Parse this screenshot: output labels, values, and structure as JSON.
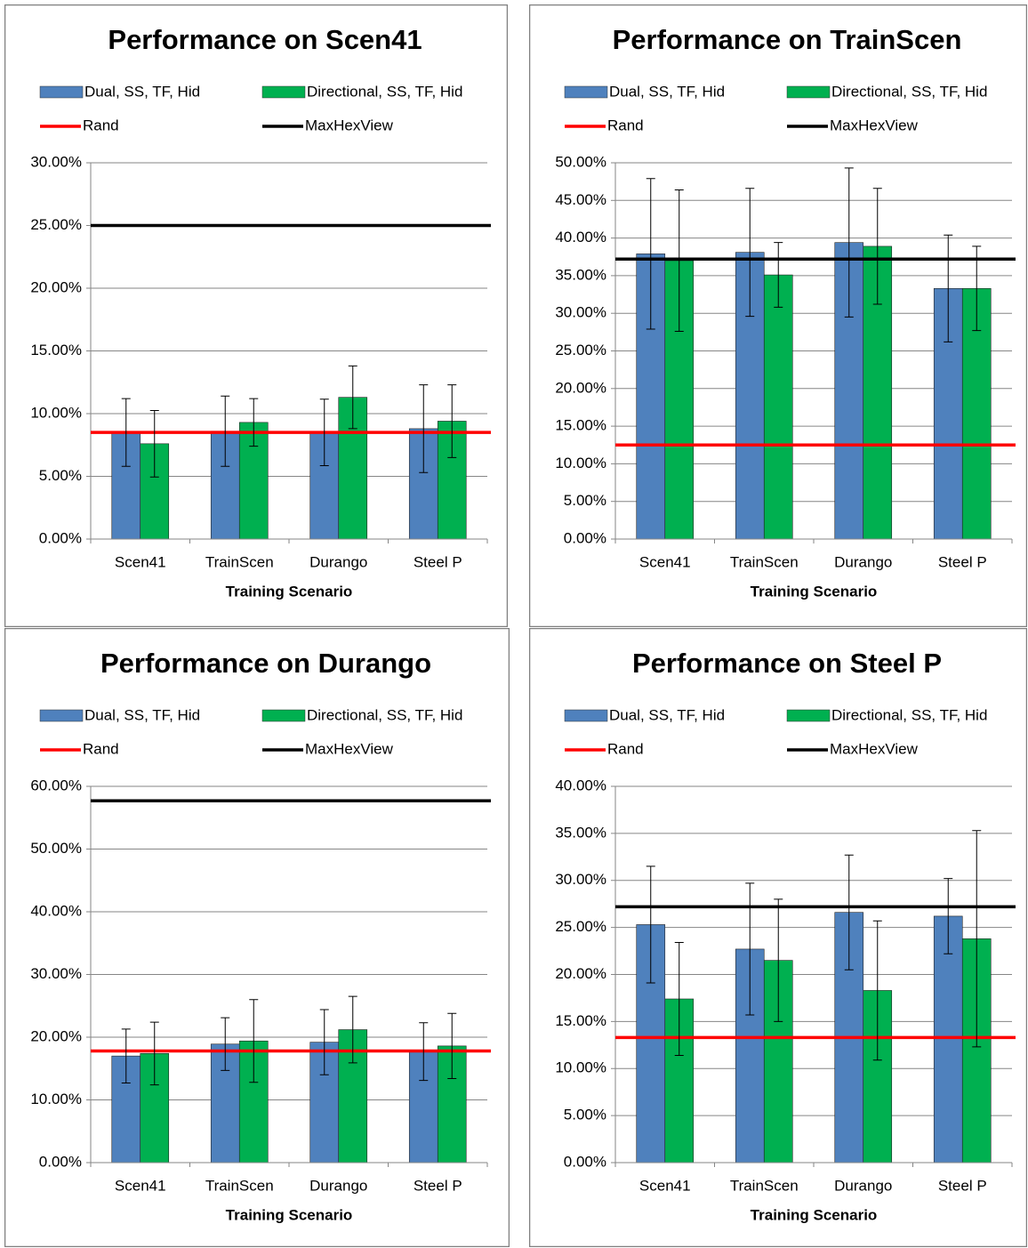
{
  "chart_data": [
    {
      "type": "bar",
      "title": "Performance on Scen41",
      "x_label": "Training Scenario",
      "categories": [
        "Scen41",
        "TrainScen",
        "Durango",
        "Steel P"
      ],
      "series": [
        {
          "name": "Dual, SS, TF, Hid",
          "color": "#4f81bd",
          "values": [
            8.5,
            8.6,
            8.5,
            8.8
          ],
          "errors": [
            2.7,
            2.8,
            2.65,
            3.5
          ]
        },
        {
          "name": "Directional, SS, TF, Hid",
          "color": "#00b050",
          "values": [
            7.6,
            9.3,
            11.3,
            9.4
          ],
          "errors": [
            2.65,
            1.9,
            2.5,
            2.9
          ]
        }
      ],
      "reference_lines": [
        {
          "name": "Rand",
          "color": "#ff0000",
          "value": 8.5
        },
        {
          "name": "MaxHexView",
          "color": "#000000",
          "value": 25
        }
      ],
      "ylim": [
        0,
        30
      ],
      "yticks": [
        {
          "value": 0,
          "label": "0.00%"
        },
        {
          "value": 5,
          "label": "5.00%"
        },
        {
          "value": 10,
          "label": "10.00%"
        },
        {
          "value": 15,
          "label": "15.00%"
        },
        {
          "value": 20,
          "label": "20.00%"
        },
        {
          "value": 25,
          "label": "25.00%"
        },
        {
          "value": 30,
          "label": "30.00%"
        }
      ],
      "grid": true
    },
    {
      "type": "bar",
      "title": "Performance on TrainScen",
      "x_label": "Training Scenario",
      "categories": [
        "Scen41",
        "TrainScen",
        "Durango",
        "Steel P"
      ],
      "series": [
        {
          "name": "Dual, SS, TF, Hid",
          "color": "#4f81bd",
          "values": [
            37.9,
            38.1,
            39.4,
            33.3
          ],
          "errors": [
            10,
            8.5,
            9.9,
            7.1
          ]
        },
        {
          "name": "Directional, SS, TF, Hid",
          "color": "#00b050",
          "values": [
            37.0,
            35.1,
            38.9,
            33.3
          ],
          "errors": [
            9.4,
            4.3,
            7.7,
            5.6
          ]
        }
      ],
      "reference_lines": [
        {
          "name": "Rand",
          "color": "#ff0000",
          "value": 12.5
        },
        {
          "name": "MaxHexView",
          "color": "#000000",
          "value": 37.2
        }
      ],
      "ylim": [
        0,
        50
      ],
      "yticks": [
        {
          "value": 0,
          "label": "0.00%"
        },
        {
          "value": 5,
          "label": "5.00%"
        },
        {
          "value": 10,
          "label": "10.00%"
        },
        {
          "value": 15,
          "label": "15.00%"
        },
        {
          "value": 20,
          "label": "20.00%"
        },
        {
          "value": 25,
          "label": "25.00%"
        },
        {
          "value": 30,
          "label": "30.00%"
        },
        {
          "value": 35,
          "label": "35.00%"
        },
        {
          "value": 40,
          "label": "40.00%"
        },
        {
          "value": 45,
          "label": "45.00%"
        },
        {
          "value": 50,
          "label": "50.00%"
        }
      ],
      "grid": true
    },
    {
      "type": "bar",
      "title": "Performance on Durango",
      "x_label": "Training Scenario",
      "categories": [
        "Scen41",
        "TrainScen",
        "Durango",
        "Steel P"
      ],
      "series": [
        {
          "name": "Dual, SS, TF, Hid",
          "color": "#4f81bd",
          "values": [
            17.0,
            18.9,
            19.2,
            17.7
          ],
          "errors": [
            4.3,
            4.2,
            5.2,
            4.6
          ]
        },
        {
          "name": "Directional, SS, TF, Hid",
          "color": "#00b050",
          "values": [
            17.4,
            19.4,
            21.2,
            18.6
          ],
          "errors": [
            5,
            6.6,
            5.3,
            5.2
          ]
        }
      ],
      "reference_lines": [
        {
          "name": "Rand",
          "color": "#ff0000",
          "value": 17.8
        },
        {
          "name": "MaxHexView",
          "color": "#000000",
          "value": 57.7
        }
      ],
      "ylim": [
        0,
        60
      ],
      "yticks": [
        {
          "value": 0,
          "label": "0.00%"
        },
        {
          "value": 10,
          "label": "10.00%"
        },
        {
          "value": 20,
          "label": "20.00%"
        },
        {
          "value": 30,
          "label": "30.00%"
        },
        {
          "value": 40,
          "label": "40.00%"
        },
        {
          "value": 50,
          "label": "50.00%"
        },
        {
          "value": 60,
          "label": "60.00%"
        }
      ],
      "grid": true
    },
    {
      "type": "bar",
      "title": "Performance on Steel P",
      "x_label": "Training Scenario",
      "categories": [
        "Scen41",
        "TrainScen",
        "Durango",
        "Steel P"
      ],
      "series": [
        {
          "name": "Dual, SS, TF, Hid",
          "color": "#4f81bd",
          "values": [
            25.3,
            22.7,
            26.6,
            26.2
          ],
          "errors": [
            6.2,
            7,
            6.1,
            4
          ]
        },
        {
          "name": "Directional, SS, TF, Hid",
          "color": "#00b050",
          "values": [
            17.4,
            21.5,
            18.3,
            23.8
          ],
          "errors": [
            6,
            6.5,
            7.4,
            11.5
          ]
        }
      ],
      "reference_lines": [
        {
          "name": "Rand",
          "color": "#ff0000",
          "value": 13.3
        },
        {
          "name": "MaxHexView",
          "color": "#000000",
          "value": 27.2
        }
      ],
      "ylim": [
        0,
        40
      ],
      "yticks": [
        {
          "value": 0,
          "label": "0.00%"
        },
        {
          "value": 5,
          "label": "5.00%"
        },
        {
          "value": 10,
          "label": "10.00%"
        },
        {
          "value": 15,
          "label": "15.00%"
        },
        {
          "value": 20,
          "label": "20.00%"
        },
        {
          "value": 25,
          "label": "25.00%"
        },
        {
          "value": 30,
          "label": "30.00%"
        },
        {
          "value": 35,
          "label": "35.00%"
        },
        {
          "value": 40,
          "label": "40.00%"
        }
      ],
      "grid": true
    }
  ]
}
